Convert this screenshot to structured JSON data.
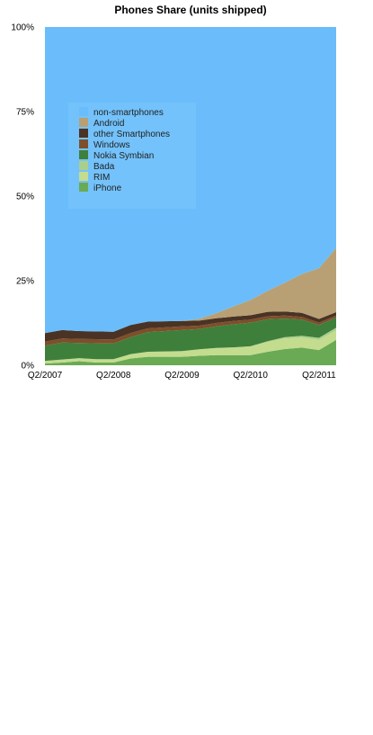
{
  "chart_data": {
    "type": "area",
    "stacked": true,
    "title": "Phones Share (units shipped)",
    "xlabel": "",
    "ylabel": "",
    "ylim": [
      0,
      100
    ],
    "y_ticks": [
      "0%",
      "25%",
      "50%",
      "75%",
      "100%"
    ],
    "x_tick_labels": [
      "Q2/2007",
      "Q2/2008",
      "Q2/2009",
      "Q2/2010",
      "Q2/2011"
    ],
    "x_tick_index": [
      0,
      4,
      8,
      12,
      16
    ],
    "categories": [
      "Q2/2007",
      "Q3/2007",
      "Q4/2007",
      "Q1/2008",
      "Q2/2008",
      "Q3/2008",
      "Q4/2008",
      "Q1/2009",
      "Q2/2009",
      "Q3/2009",
      "Q4/2009",
      "Q1/2010",
      "Q2/2010",
      "Q3/2010",
      "Q4/2010",
      "Q1/2011",
      "Q2/2011",
      "Q3/2011"
    ],
    "legend_position": "upper-left",
    "grid": false,
    "series": [
      {
        "name": "iPhone",
        "color": "#6aaa54",
        "values": [
          0.5,
          0.8,
          1.2,
          0.8,
          0.8,
          2.0,
          2.5,
          2.5,
          2.5,
          2.8,
          3.0,
          3.0,
          3.0,
          4.0,
          4.8,
          5.2,
          4.5,
          7.5
        ]
      },
      {
        "name": "RIM",
        "color": "#c3dc8e",
        "values": [
          0.8,
          0.9,
          0.9,
          1.0,
          1.0,
          1.3,
          1.5,
          1.6,
          1.7,
          1.9,
          2.1,
          2.3,
          2.6,
          2.9,
          3.1,
          3.0,
          3.0,
          2.8
        ]
      },
      {
        "name": "Bada",
        "color": "#a9cf8a",
        "values": [
          0,
          0,
          0,
          0,
          0,
          0,
          0,
          0,
          0,
          0,
          0,
          0,
          0,
          0.2,
          0.4,
          0.5,
          0.6,
          0.8
        ]
      },
      {
        "name": "Nokia Symbian",
        "color": "#3e7f3c",
        "values": [
          4.5,
          5.0,
          4.5,
          4.7,
          4.6,
          5.0,
          5.8,
          6.0,
          6.2,
          6.0,
          6.4,
          6.8,
          7.0,
          6.5,
          5.5,
          4.8,
          3.8,
          3.0
        ]
      },
      {
        "name": "Windows",
        "color": "#7e4f2a",
        "values": [
          1.2,
          1.2,
          1.2,
          1.2,
          1.2,
          1.2,
          1.1,
          1.1,
          1.1,
          1.0,
          1.0,
          1.0,
          0.9,
          0.9,
          0.9,
          0.8,
          0.7,
          0.6
        ]
      },
      {
        "name": "other Smartphones",
        "color": "#4a3324",
        "values": [
          2.5,
          2.5,
          2.3,
          2.3,
          2.3,
          2.4,
          2.0,
          1.8,
          1.6,
          1.5,
          1.4,
          1.3,
          1.3,
          1.3,
          1.2,
          1.2,
          1.1,
          1.0
        ]
      },
      {
        "name": "Android",
        "color": "#b8a074",
        "values": [
          0,
          0,
          0,
          0,
          0,
          0,
          0,
          0,
          0,
          0.5,
          1.5,
          3.0,
          4.5,
          6.2,
          8.5,
          11.5,
          15.0,
          19.0
        ]
      },
      {
        "name": "non-smartphones",
        "color": "#6abdfa",
        "values": [
          90.5,
          89.6,
          89.9,
          90.0,
          90.1,
          88.1,
          87.1,
          87.0,
          86.9,
          86.3,
          84.6,
          82.6,
          80.7,
          78.0,
          75.6,
          73.0,
          71.3,
          65.3
        ]
      }
    ]
  }
}
